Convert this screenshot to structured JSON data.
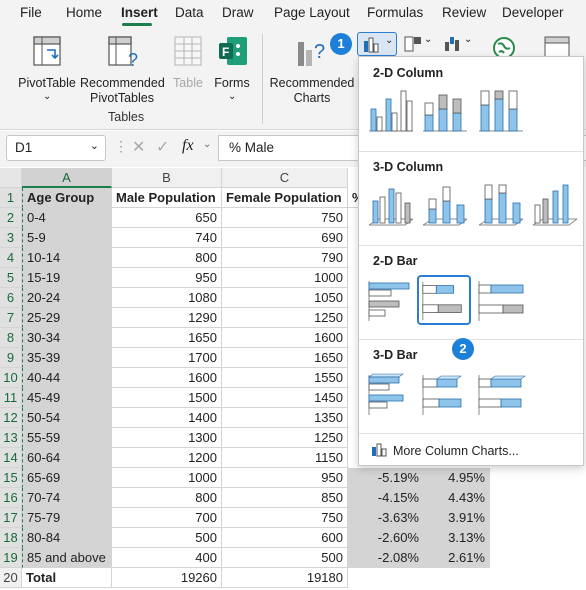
{
  "menu": {
    "items": [
      "File",
      "Home",
      "Insert",
      "Data",
      "Draw",
      "Page Layout",
      "Formulas",
      "Review",
      "Developer"
    ],
    "active": "Insert"
  },
  "ribbon": {
    "pivot_table": "PivotTable",
    "recommended_pivot_1": "Recommended",
    "recommended_pivot_2": "PivotTables",
    "table": "Table",
    "forms": "Forms",
    "recommended_charts_1": "Recommended",
    "recommended_charts_2": "Charts",
    "group_tables": "Tables"
  },
  "formula_bar": {
    "name_box": "D1",
    "fx": "fx",
    "content": "% Male"
  },
  "sheet": {
    "columns": [
      "A",
      "B",
      "C"
    ],
    "rows": [
      {
        "n": "1",
        "a": "Age Group",
        "b": "Male Population",
        "c": "Female Population",
        "d": "%",
        "e": ""
      },
      {
        "n": "2",
        "a": "0-4",
        "b": "650",
        "c": "750",
        "d": "",
        "e": ""
      },
      {
        "n": "3",
        "a": "5-9",
        "b": "740",
        "c": "690",
        "d": "",
        "e": ""
      },
      {
        "n": "4",
        "a": "10-14",
        "b": "800",
        "c": "790",
        "d": "",
        "e": ""
      },
      {
        "n": "5",
        "a": "15-19",
        "b": "950",
        "c": "1000",
        "d": "",
        "e": ""
      },
      {
        "n": "6",
        "a": "20-24",
        "b": "1080",
        "c": "1050",
        "d": "",
        "e": ""
      },
      {
        "n": "7",
        "a": "25-29",
        "b": "1290",
        "c": "1250",
        "d": "",
        "e": ""
      },
      {
        "n": "8",
        "a": "30-34",
        "b": "1650",
        "c": "1600",
        "d": "",
        "e": ""
      },
      {
        "n": "9",
        "a": "35-39",
        "b": "1700",
        "c": "1650",
        "d": "",
        "e": ""
      },
      {
        "n": "10",
        "a": "40-44",
        "b": "1600",
        "c": "1550",
        "d": "",
        "e": ""
      },
      {
        "n": "11",
        "a": "45-49",
        "b": "1500",
        "c": "1450",
        "d": "",
        "e": ""
      },
      {
        "n": "12",
        "a": "50-54",
        "b": "1400",
        "c": "1350",
        "d": "",
        "e": ""
      },
      {
        "n": "13",
        "a": "55-59",
        "b": "1300",
        "c": "1250",
        "d": "",
        "e": ""
      },
      {
        "n": "14",
        "a": "60-64",
        "b": "1200",
        "c": "1150",
        "d": "",
        "e": ""
      },
      {
        "n": "15",
        "a": "65-69",
        "b": "1000",
        "c": "950",
        "d": "-5.19%",
        "e": "4.95%"
      },
      {
        "n": "16",
        "a": "70-74",
        "b": "800",
        "c": "850",
        "d": "-4.15%",
        "e": "4.43%"
      },
      {
        "n": "17",
        "a": "75-79",
        "b": "700",
        "c": "750",
        "d": "-3.63%",
        "e": "3.91%"
      },
      {
        "n": "18",
        "a": "80-84",
        "b": "500",
        "c": "600",
        "d": "-2.60%",
        "e": "3.13%"
      },
      {
        "n": "19",
        "a": "85 and above",
        "b": "400",
        "c": "500",
        "d": "-2.08%",
        "e": "2.61%"
      },
      {
        "n": "20",
        "a": "Total",
        "b": "19260",
        "c": "19180",
        "d": "",
        "e": ""
      }
    ]
  },
  "dropdown": {
    "section_2d_column": "2-D Column",
    "section_3d_column": "3-D Column",
    "section_2d_bar": "2-D Bar",
    "section_3d_bar": "3-D Bar",
    "more": "More Column Charts..."
  },
  "callouts": [
    "1",
    "2"
  ],
  "colors": {
    "accent_green": "#1a7f4b",
    "selection_blue": "#2a7fd4",
    "chart_blue": "#8ec4ea",
    "badge_blue": "#1c7fd8"
  }
}
